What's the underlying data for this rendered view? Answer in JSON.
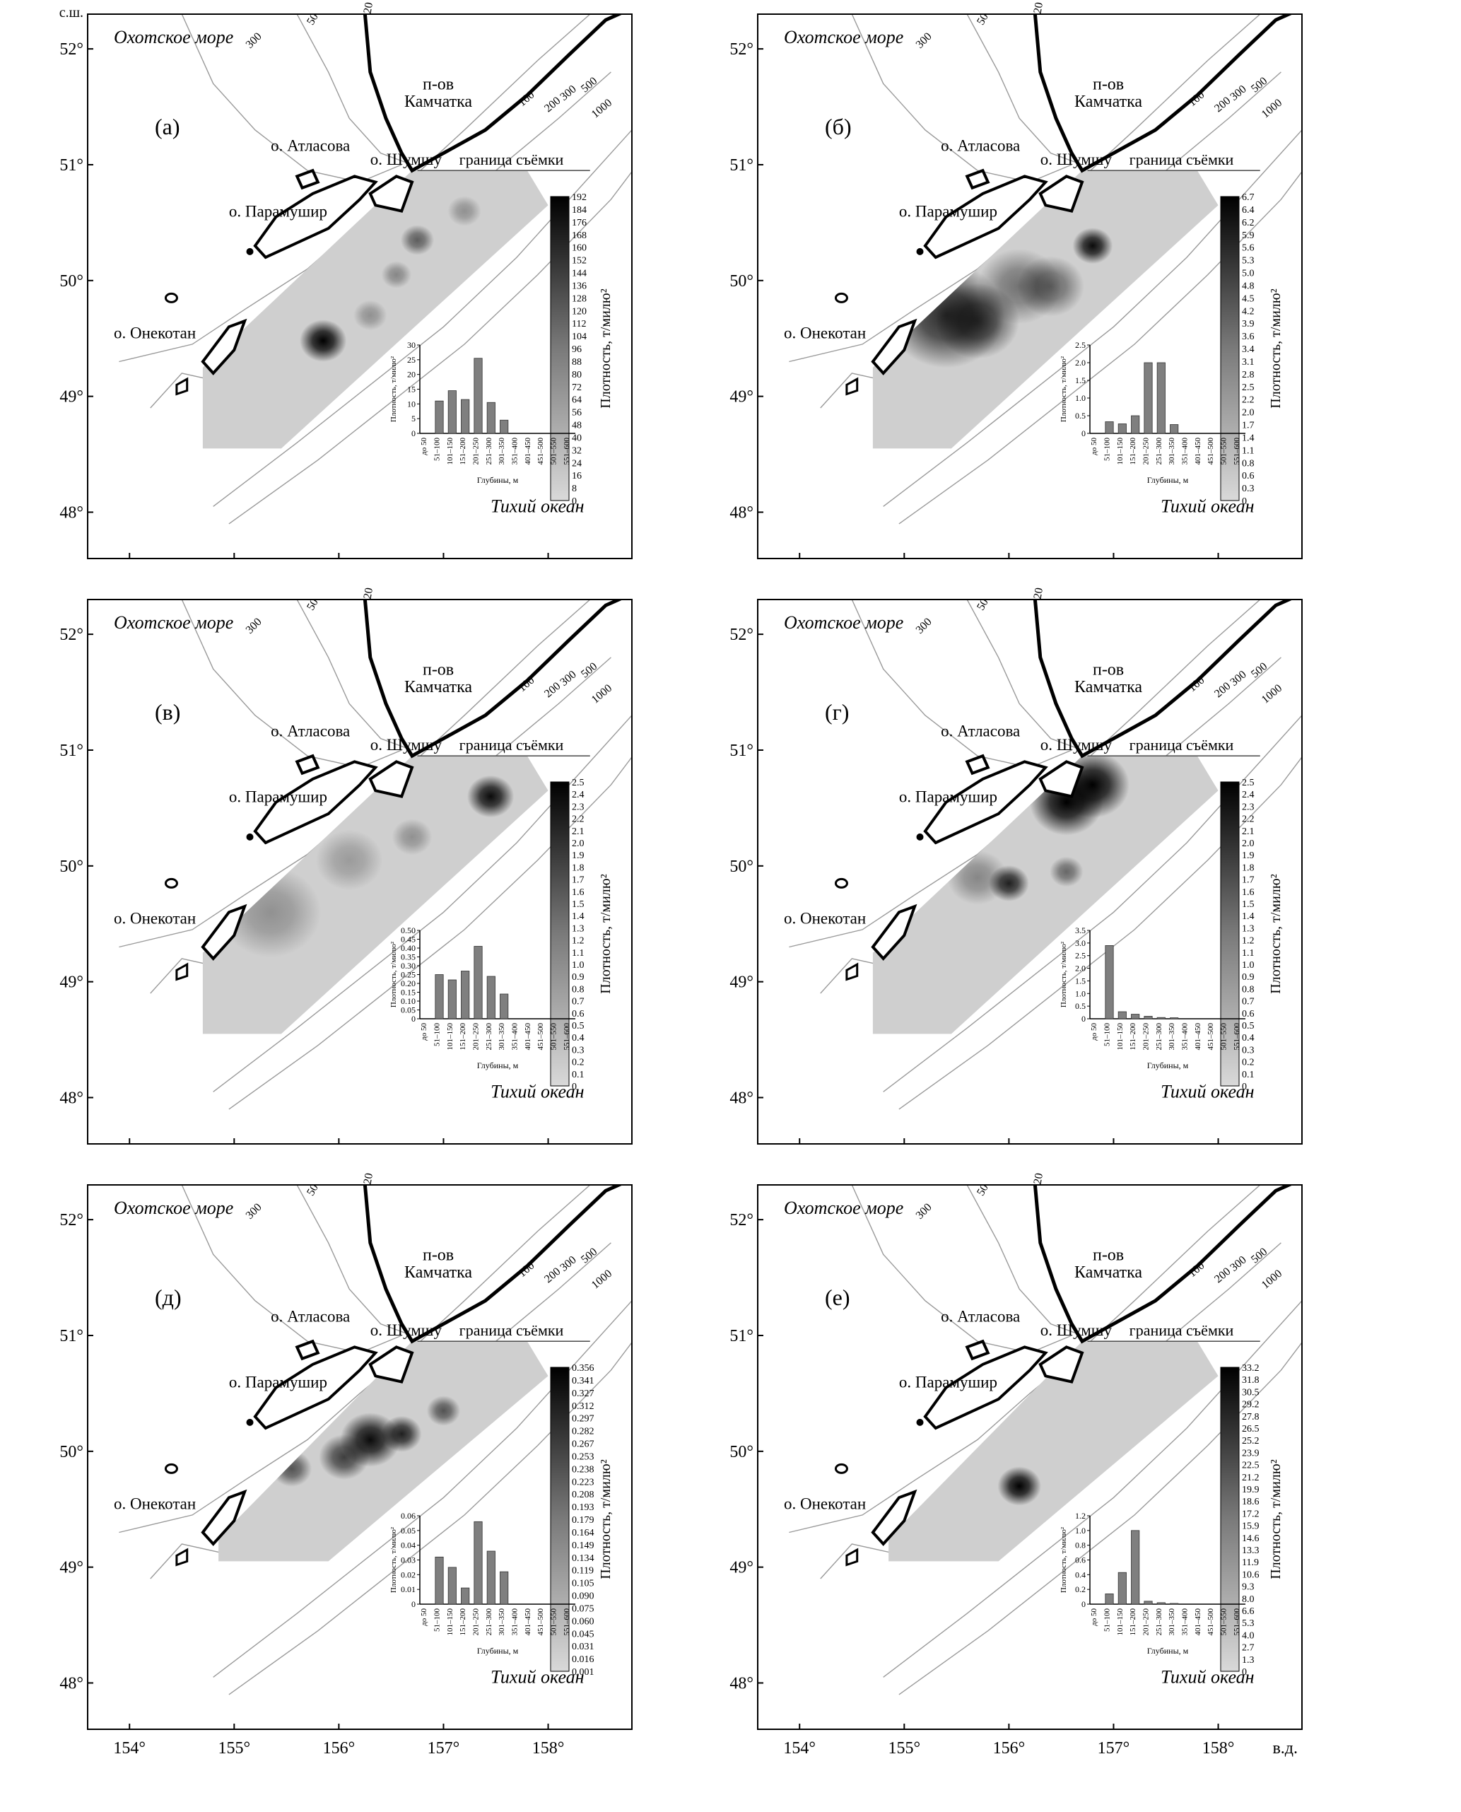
{
  "axes": {
    "lat_unit_label": "с.ш.",
    "lon_unit_label": "в.д.",
    "lat_ticks": [
      {
        "value": 48,
        "label": "48°"
      },
      {
        "value": 49,
        "label": "49°"
      },
      {
        "value": 50,
        "label": "50°"
      },
      {
        "value": 51,
        "label": "51°"
      },
      {
        "value": 52,
        "label": "52°"
      }
    ],
    "lon_ticks": [
      {
        "value": 154,
        "label": "154°"
      },
      {
        "value": 155,
        "label": "155°"
      },
      {
        "value": 156,
        "label": "156°"
      },
      {
        "value": 157,
        "label": "157°"
      },
      {
        "value": 158,
        "label": "158°"
      }
    ],
    "lat_range": [
      47.6,
      52.3
    ],
    "lon_range": [
      153.6,
      158.8
    ]
  },
  "map_labels": {
    "sea": "Охотское море",
    "ocean": "Тихий океан",
    "peninsula_line1": "п-ов",
    "peninsula_line2": "Камчатка",
    "island_atlasova": "о. Атласова",
    "island_shumshu": "о. Шумшу",
    "island_paramushir": "о. Парамушир",
    "island_onekotan": "о. Онекотан",
    "survey_boundary": "граница съёмки"
  },
  "isobath_labels": {
    "d20": "20",
    "d50": "50",
    "d100": "100",
    "d200": "200",
    "d300": "300",
    "d500": "500",
    "d1000": "1000"
  },
  "colorbar_title": "Плотность, т/милю²",
  "histogram": {
    "ylabel": "Плотность, т/милю²",
    "xlabel": "Глубины, м",
    "categories": [
      "до 50",
      "51–100",
      "101–150",
      "151–200",
      "201–250",
      "251–300",
      "301–350",
      "351–400",
      "401–450",
      "451–500",
      "501–550",
      "551–600"
    ]
  },
  "colors": {
    "survey_fill": "#cfcfcf",
    "bar_fill": "#7f7f7f",
    "coast": "#000000",
    "isobath": "#9a9a9a"
  },
  "panels": [
    {
      "letter": "(а)",
      "colorbar_ticks": [
        "0",
        "8",
        "16",
        "24",
        "32",
        "40",
        "48",
        "56",
        "64",
        "72",
        "80",
        "88",
        "96",
        "104",
        "112",
        "120",
        "128",
        "136",
        "144",
        "152",
        "160",
        "168",
        "176",
        "184",
        "192"
      ],
      "hist_yticks": [
        "0",
        "5",
        "10",
        "15",
        "20",
        "25",
        "30"
      ],
      "chart_data": {
        "type": "bar",
        "categories": [
          "до 50",
          "51–100",
          "101–150",
          "151–200",
          "201–250",
          "251–300",
          "301–350",
          "351–400",
          "401–450",
          "451–500",
          "501–550",
          "551–600"
        ],
        "values": [
          0,
          11,
          14.5,
          11.5,
          25.5,
          10.5,
          4.5,
          0,
          0,
          0,
          0,
          0
        ],
        "ylim": [
          0,
          30
        ]
      },
      "survey_lat_min": 48.55,
      "blobs": [
        {
          "lon": 155.85,
          "lat": 49.48,
          "r": 0.14,
          "v": 1.0
        },
        {
          "lon": 156.75,
          "lat": 50.35,
          "r": 0.1,
          "v": 0.55
        },
        {
          "lon": 156.55,
          "lat": 50.05,
          "r": 0.09,
          "v": 0.35
        },
        {
          "lon": 156.3,
          "lat": 49.7,
          "r": 0.1,
          "v": 0.3
        },
        {
          "lon": 157.2,
          "lat": 50.6,
          "r": 0.1,
          "v": 0.3
        }
      ]
    },
    {
      "letter": "(б)",
      "colorbar_ticks": [
        "0",
        "0.3",
        "0.6",
        "0.8",
        "1.1",
        "1.4",
        "1.7",
        "2.0",
        "2.2",
        "2.5",
        "2.8",
        "3.1",
        "3.4",
        "3.6",
        "3.9",
        "4.2",
        "4.5",
        "4.8",
        "5.0",
        "5.3",
        "5.6",
        "5.9",
        "6.2",
        "6.4",
        "6.7"
      ],
      "hist_yticks": [
        "0",
        "0.5",
        "1.0",
        "1.5",
        "2.0",
        "2.5"
      ],
      "chart_data": {
        "type": "bar",
        "categories": [
          "до 50",
          "51–100",
          "101–150",
          "151–200",
          "201–250",
          "251–300",
          "301–350",
          "351–400",
          "401–450",
          "451–500",
          "501–550",
          "551–600"
        ],
        "values": [
          0,
          0.33,
          0.27,
          0.5,
          2.0,
          2.0,
          0.25,
          0,
          0,
          0,
          0,
          0
        ],
        "ylim": [
          0,
          2.5
        ]
      },
      "survey_lat_min": 48.55,
      "blobs": [
        {
          "lon": 155.4,
          "lat": 49.7,
          "r": 0.35,
          "v": 0.8
        },
        {
          "lon": 155.7,
          "lat": 49.65,
          "r": 0.25,
          "v": 0.7
        },
        {
          "lon": 156.8,
          "lat": 50.3,
          "r": 0.12,
          "v": 0.95
        },
        {
          "lon": 156.1,
          "lat": 49.95,
          "r": 0.25,
          "v": 0.45
        },
        {
          "lon": 156.4,
          "lat": 49.95,
          "r": 0.2,
          "v": 0.5
        }
      ]
    },
    {
      "letter": "(в)",
      "colorbar_ticks": [
        "0",
        "0.1",
        "0.2",
        "0.3",
        "0.4",
        "0.5",
        "0.6",
        "0.7",
        "0.8",
        "0.9",
        "1.0",
        "1.1",
        "1.2",
        "1.3",
        "1.4",
        "1.5",
        "1.6",
        "1.7",
        "1.8",
        "1.9",
        "2.0",
        "2.1",
        "2.2",
        "2.3",
        "2.4",
        "2.5"
      ],
      "hist_yticks": [
        "0",
        "0.05",
        "0.10",
        "0.15",
        "0.20",
        "0.25",
        "0.30",
        "0.35",
        "0.40",
        "0.45",
        "0.50"
      ],
      "chart_data": {
        "type": "bar",
        "categories": [
          "до 50",
          "51–100",
          "101–150",
          "151–200",
          "201–250",
          "251–300",
          "301–350",
          "351–400",
          "401–450",
          "451–500",
          "501–550",
          "551–600"
        ],
        "values": [
          0,
          0.25,
          0.22,
          0.27,
          0.41,
          0.24,
          0.14,
          0,
          0,
          0,
          0,
          0
        ],
        "ylim": [
          0,
          0.5
        ]
      },
      "survey_lat_min": 48.55,
      "blobs": [
        {
          "lon": 157.45,
          "lat": 50.6,
          "r": 0.14,
          "v": 0.95
        },
        {
          "lon": 155.35,
          "lat": 49.6,
          "r": 0.3,
          "v": 0.3
        },
        {
          "lon": 156.7,
          "lat": 50.25,
          "r": 0.12,
          "v": 0.3
        },
        {
          "lon": 156.1,
          "lat": 50.05,
          "r": 0.2,
          "v": 0.25
        }
      ]
    },
    {
      "letter": "(г)",
      "colorbar_ticks": [
        "0",
        "0.1",
        "0.2",
        "0.3",
        "0.4",
        "0.5",
        "0.6",
        "0.7",
        "0.8",
        "0.9",
        "1.0",
        "1.1",
        "1.2",
        "1.3",
        "1.4",
        "1.5",
        "1.6",
        "1.7",
        "1.8",
        "1.9",
        "2.0",
        "2.1",
        "2.2",
        "2.3",
        "2.4",
        "2.5"
      ],
      "hist_yticks": [
        "0",
        "0.5",
        "1.0",
        "1.5",
        "2.0",
        "2.5",
        "3.0",
        "3.5"
      ],
      "chart_data": {
        "type": "bar",
        "categories": [
          "до 50",
          "51–100",
          "101–150",
          "151–200",
          "201–250",
          "251–300",
          "301–350",
          "351–400",
          "401–450",
          "451–500",
          "501–550",
          "551–600"
        ],
        "values": [
          0,
          2.9,
          0.28,
          0.18,
          0.1,
          0.05,
          0.04,
          0,
          0,
          0,
          0,
          0
        ],
        "ylim": [
          0,
          3.5
        ]
      },
      "survey_lat_min": 48.55,
      "blobs": [
        {
          "lon": 156.8,
          "lat": 50.7,
          "r": 0.22,
          "v": 1.0
        },
        {
          "lon": 156.55,
          "lat": 50.55,
          "r": 0.22,
          "v": 1.0
        },
        {
          "lon": 156.0,
          "lat": 49.85,
          "r": 0.12,
          "v": 0.85
        },
        {
          "lon": 156.55,
          "lat": 49.95,
          "r": 0.1,
          "v": 0.5
        },
        {
          "lon": 155.7,
          "lat": 49.9,
          "r": 0.18,
          "v": 0.35
        }
      ]
    },
    {
      "letter": "(д)",
      "colorbar_ticks": [
        "0.001",
        "0.016",
        "0.031",
        "0.045",
        "0.060",
        "0.075",
        "0.090",
        "0.105",
        "0.119",
        "0.134",
        "0.149",
        "0.164",
        "0.179",
        "0.193",
        "0.208",
        "0.223",
        "0.238",
        "0.253",
        "0.267",
        "0.282",
        "0.297",
        "0.312",
        "0.327",
        "0.341",
        "0.356"
      ],
      "hist_yticks": [
        "0",
        "0.01",
        "0.02",
        "0.03",
        "0.04",
        "0.05",
        "0.06"
      ],
      "chart_data": {
        "type": "bar",
        "categories": [
          "до 50",
          "51–100",
          "101–150",
          "151–200",
          "201–250",
          "251–300",
          "301–350",
          "351–400",
          "401–450",
          "451–500",
          "501–550",
          "551–600"
        ],
        "values": [
          0,
          0.032,
          0.025,
          0.011,
          0.056,
          0.036,
          0.022,
          0,
          0,
          0,
          0,
          0
        ],
        "ylim": [
          0,
          0.06
        ]
      },
      "survey_lat_min": 49.05,
      "blobs": [
        {
          "lon": 156.3,
          "lat": 50.1,
          "r": 0.18,
          "v": 0.95
        },
        {
          "lon": 156.6,
          "lat": 50.15,
          "r": 0.12,
          "v": 0.85
        },
        {
          "lon": 156.05,
          "lat": 49.95,
          "r": 0.15,
          "v": 0.7
        },
        {
          "lon": 155.55,
          "lat": 49.85,
          "r": 0.12,
          "v": 0.6
        },
        {
          "lon": 157.0,
          "lat": 50.35,
          "r": 0.1,
          "v": 0.6
        }
      ]
    },
    {
      "letter": "(е)",
      "colorbar_ticks": [
        "0",
        "1.3",
        "2.7",
        "4.0",
        "5.3",
        "6.6",
        "8.0",
        "9.3",
        "10.6",
        "11.9",
        "13.3",
        "14.6",
        "15.9",
        "17.2",
        "18.6",
        "19.9",
        "21.2",
        "22.5",
        "23.9",
        "25.2",
        "26.5",
        "27.8",
        "29.2",
        "30.5",
        "31.8",
        "33.2"
      ],
      "hist_yticks": [
        "0",
        "0.2",
        "0.4",
        "0.6",
        "0.8",
        "1.0",
        "1.2"
      ],
      "chart_data": {
        "type": "bar",
        "categories": [
          "до 50",
          "51–100",
          "101–150",
          "151–200",
          "201–250",
          "251–300",
          "301–350",
          "351–400",
          "401–450",
          "451–500",
          "501–550",
          "551–600"
        ],
        "values": [
          0,
          0.14,
          0.43,
          1.0,
          0.04,
          0.02,
          0.01,
          0,
          0,
          0,
          0,
          0
        ],
        "ylim": [
          0,
          1.2
        ]
      },
      "survey_lat_min": 49.05,
      "blobs": [
        {
          "lon": 156.1,
          "lat": 49.7,
          "r": 0.13,
          "v": 1.0
        }
      ]
    }
  ]
}
